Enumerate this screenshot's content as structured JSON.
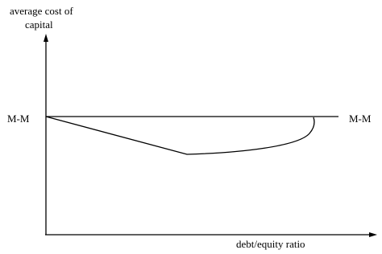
{
  "y_axis_label": {
    "lines": [
      "average cost of",
      "capital"
    ]
  },
  "mm_labels": {
    "left": "M-M",
    "right": "M-M"
  },
  "x_axis_label": "debt/equity ratio"
}
